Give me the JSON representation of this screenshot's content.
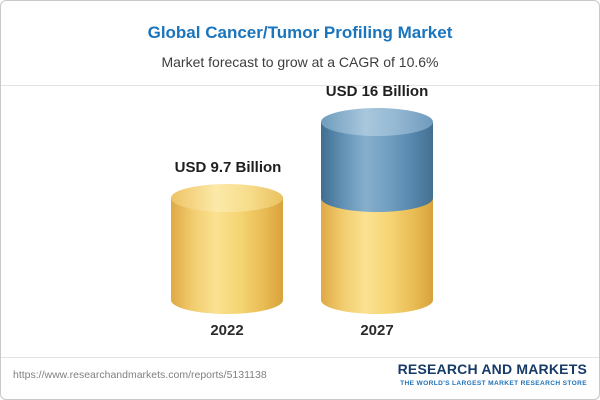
{
  "header": {
    "title": "Global Cancer/Tumor Profiling Market",
    "subtitle": "Market forecast to grow at a CAGR of 10.6%"
  },
  "chart_data": {
    "type": "bar",
    "categories": [
      "2022",
      "2027"
    ],
    "values": [
      9.7,
      16
    ],
    "value_labels": [
      "USD 9.7 Billion",
      "USD 16 Billion"
    ],
    "unit": "USD Billion",
    "cagr_percent": 10.6,
    "title": "Global Cancer/Tumor Profiling Market",
    "subtitle": "Market forecast to grow at a CAGR of 10.6%",
    "series_note": "2027 cylinder shows 2022 base value in yellow plus forecast growth segment in blue",
    "colors": {
      "base_segment": "#F5D473",
      "growth_segment": "#6E9DC0",
      "title_accent": "#1B75BC"
    },
    "legend_position": "none",
    "grid": false
  },
  "footer": {
    "url": "https://www.researchandmarkets.com/reports/5131138",
    "logo_name": "RESEARCH AND MARKETS",
    "logo_tagline": "THE WORLD'S LARGEST MARKET RESEARCH STORE"
  }
}
